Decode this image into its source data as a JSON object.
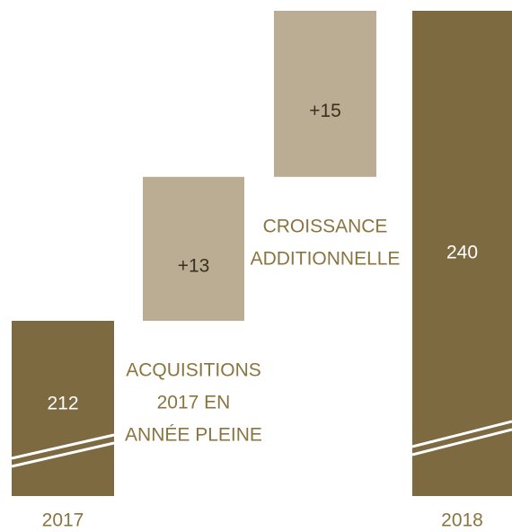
{
  "chart_data": {
    "type": "waterfall",
    "categories": [
      "2017",
      [
        "ACQUISITIONS",
        "2017 EN",
        "ANNÉE PLEINE"
      ],
      [
        "CROISSANCE",
        "ADDITIONNELLE"
      ],
      "2018"
    ],
    "values": [
      212,
      13,
      15,
      240
    ],
    "value_labels": [
      "212",
      "+13",
      "+15",
      "240"
    ],
    "colors": [
      "#7d6a40",
      "#baad94",
      "#baad94",
      "#7d6a40"
    ]
  }
}
